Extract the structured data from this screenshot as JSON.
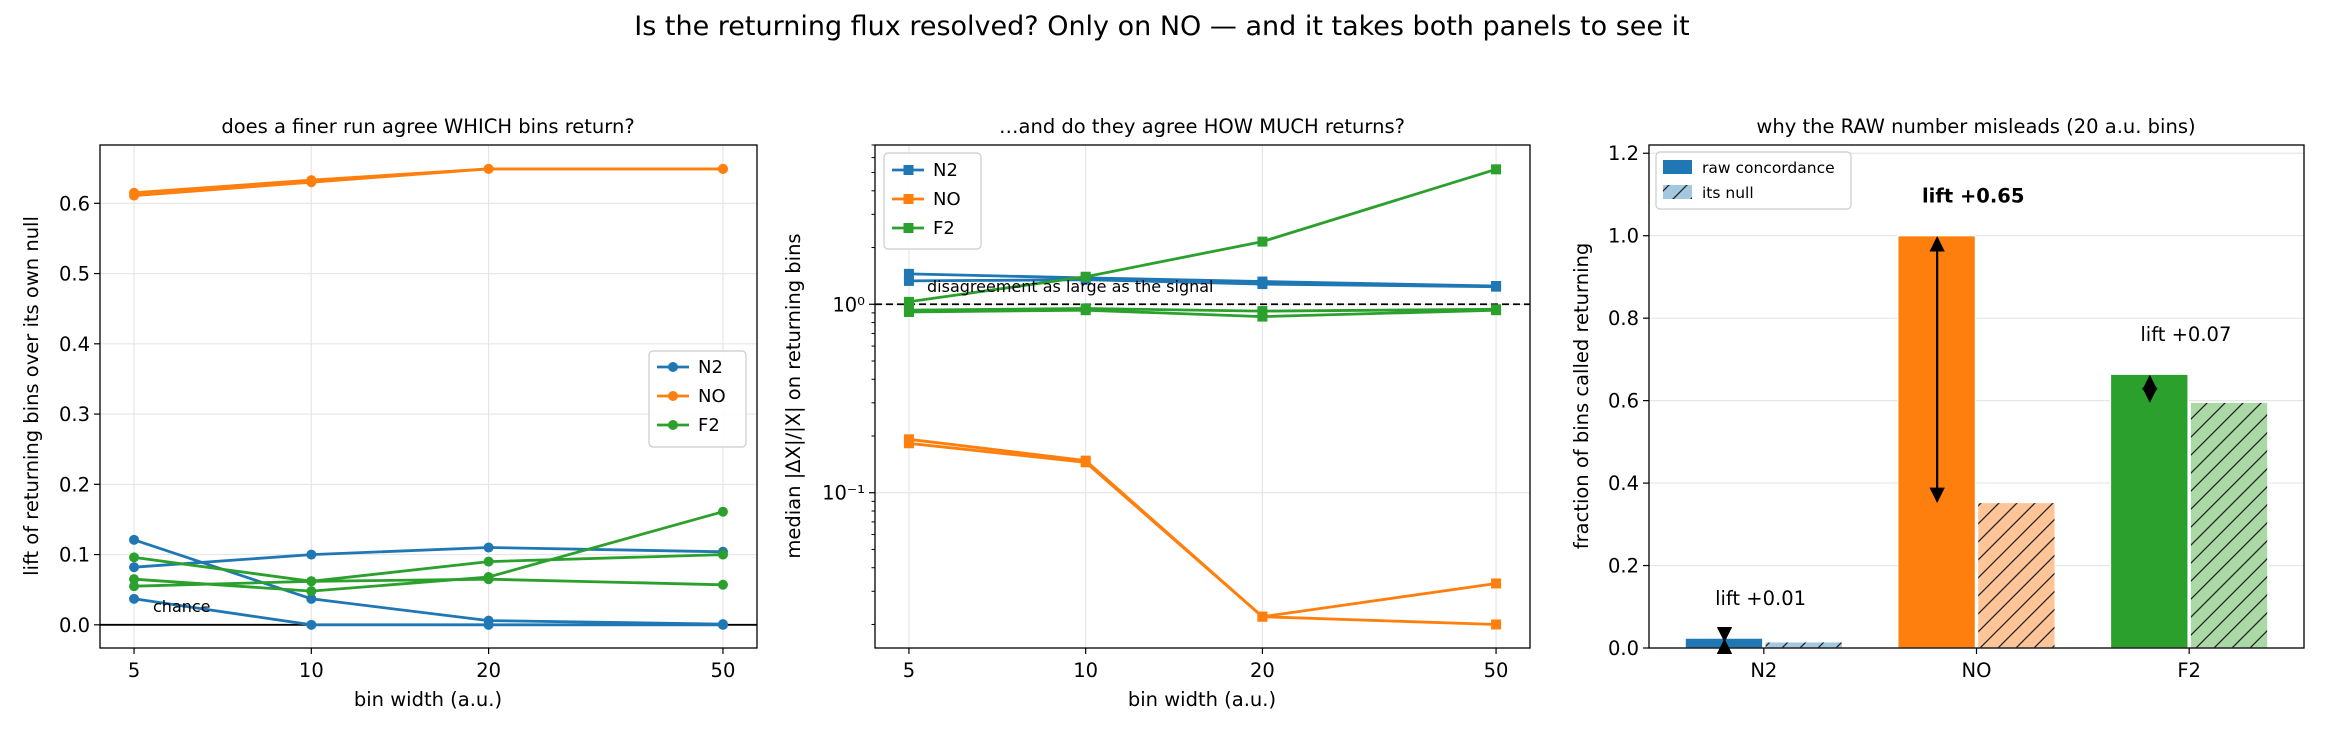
{
  "suptitle": "Is the returning flux resolved?  Only on NO — and it takes both panels to see it",
  "colors": {
    "N2": "#1f77b4",
    "NO": "#ff7f0e",
    "F2": "#2ca02c"
  },
  "chart_data": [
    {
      "type": "line",
      "title": "does a finer run agree WHICH bins return?",
      "xlabel": "bin width (a.u.)",
      "ylabel": "lift of returning bins over its own null",
      "xscale": "log",
      "x": [
        5,
        10,
        20,
        50
      ],
      "x_ticks": [
        "5",
        "10",
        "20",
        "50"
      ],
      "ylim": [
        -0.033,
        0.683
      ],
      "y_ticks": [
        "0.0",
        "0.1",
        "0.2",
        "0.3",
        "0.4",
        "0.5",
        "0.6"
      ],
      "grid": true,
      "legend": "center-right",
      "marker": "circle",
      "series": [
        {
          "name": "N2",
          "values": [
            0.121,
            0.037,
            0.006,
            0.001
          ]
        },
        {
          "name": "N2",
          "values": [
            0.082,
            0.1,
            0.11,
            0.104
          ]
        },
        {
          "name": "N2",
          "values": [
            0.037,
            0.0,
            0.0,
            0.0
          ]
        },
        {
          "name": "NO",
          "values": [
            0.615,
            0.633,
            0.649,
            0.649
          ]
        },
        {
          "name": "NO",
          "values": [
            0.611,
            0.63,
            0.649,
            0.649
          ]
        },
        {
          "name": "F2",
          "values": [
            0.096,
            0.062,
            0.065,
            0.057
          ]
        },
        {
          "name": "F2",
          "values": [
            0.055,
            0.062,
            0.09,
            0.1
          ]
        },
        {
          "name": "F2",
          "values": [
            0.065,
            0.048,
            0.068,
            0.161
          ]
        }
      ],
      "hline": {
        "y": 0.0,
        "label": "chance"
      }
    },
    {
      "type": "line",
      "title": "…and do they agree HOW MUCH returns?",
      "xlabel": "bin width (a.u.)",
      "ylabel": "median |ΔX|/|X| on returning bins",
      "xscale": "log",
      "yscale": "log",
      "x": [
        5,
        10,
        20,
        50
      ],
      "x_ticks": [
        "5",
        "10",
        "20",
        "50"
      ],
      "ylim": [
        0.015,
        7.0
      ],
      "y_ticks": [
        "10⁰",
        "10⁻¹"
      ],
      "grid": true,
      "legend": "top-left",
      "marker": "square",
      "series": [
        {
          "name": "N2",
          "values": [
            1.45,
            1.38,
            1.32,
            1.25
          ]
        },
        {
          "name": "N2",
          "values": [
            1.33,
            1.35,
            1.28,
            1.24
          ]
        },
        {
          "name": "NO",
          "values": [
            0.192,
            0.148,
            0.022,
            0.033
          ]
        },
        {
          "name": "NO",
          "values": [
            0.183,
            0.145,
            0.022,
            0.02
          ]
        },
        {
          "name": "F2",
          "values": [
            1.03,
            1.4,
            2.15,
            5.2
          ]
        },
        {
          "name": "F2",
          "values": [
            0.93,
            0.95,
            0.92,
            0.94
          ]
        },
        {
          "name": "F2",
          "values": [
            0.91,
            0.93,
            0.86,
            0.93
          ]
        }
      ],
      "hline": {
        "y": 1.0,
        "label": "disagreement as large as the signal"
      }
    },
    {
      "type": "bar",
      "title": "why the RAW number misleads (20 a.u. bins)",
      "xlabel": "",
      "ylabel": "fraction of bins called returning",
      "categories": [
        "N2",
        "NO",
        "F2"
      ],
      "ylim": [
        0,
        1.22
      ],
      "y_ticks": [
        "0.0",
        "0.2",
        "0.4",
        "0.6",
        "0.8",
        "1.0",
        "1.2"
      ],
      "grid": true,
      "legend": "top-left",
      "series": [
        {
          "name": "raw concordance",
          "values": [
            0.024,
            1.0,
            0.664
          ]
        },
        {
          "name": "its null",
          "values": [
            0.015,
            0.353,
            0.596
          ]
        }
      ],
      "annotations": [
        "lift +0.01",
        "lift +0.65",
        "lift +0.07"
      ]
    }
  ]
}
